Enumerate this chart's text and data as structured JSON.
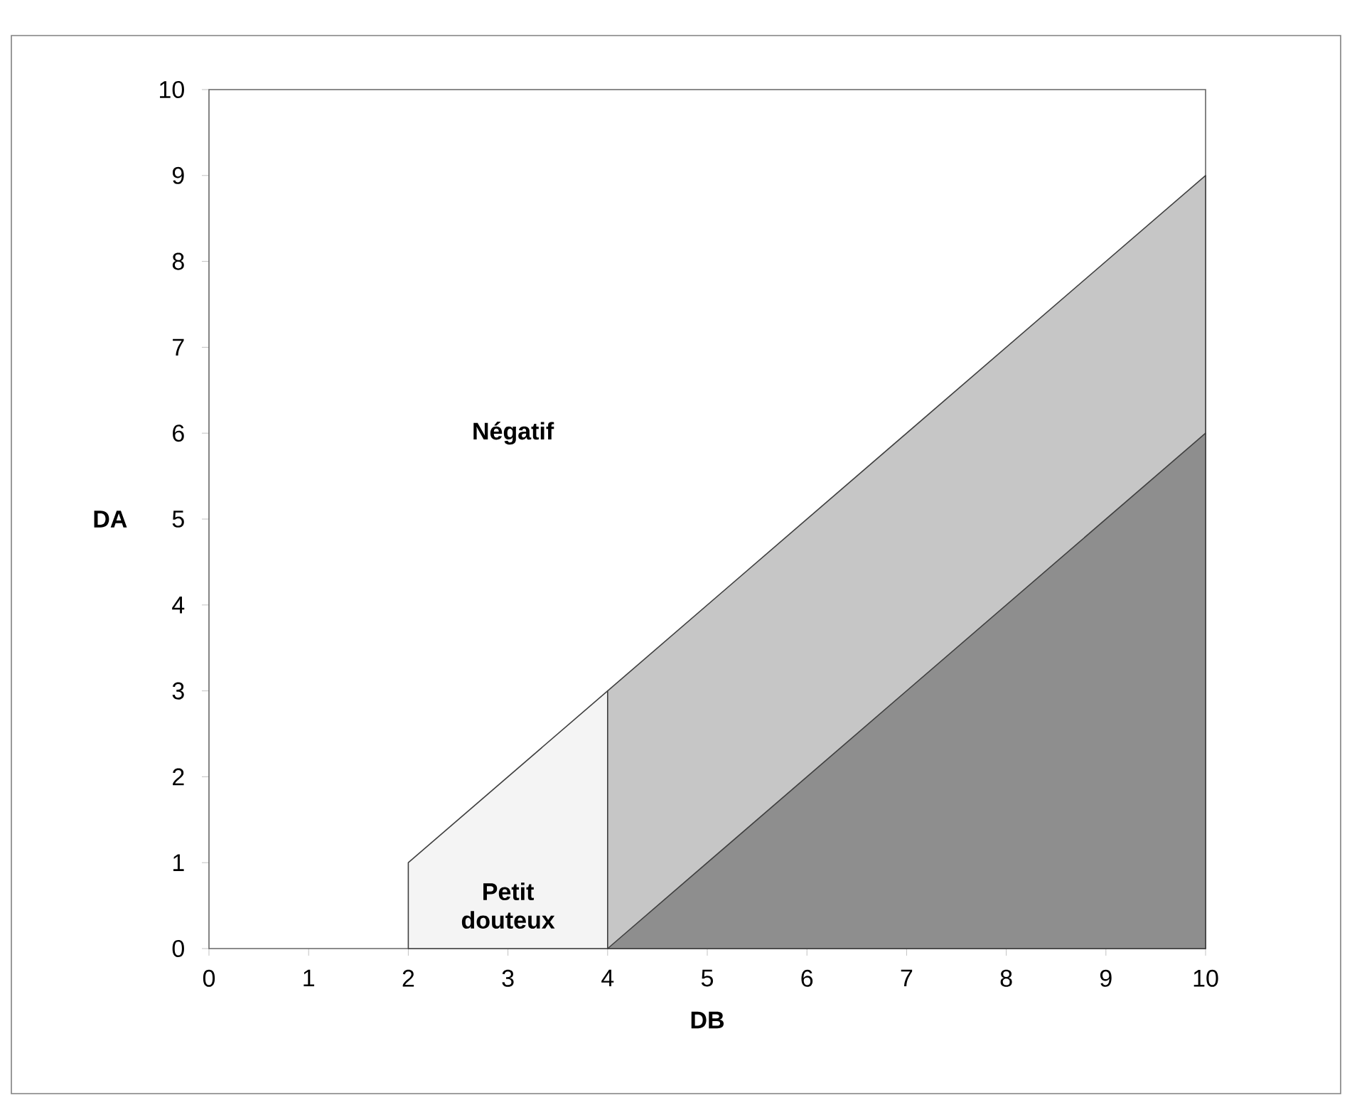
{
  "chart_data": {
    "type": "area",
    "xlabel": "DB",
    "ylabel": "DA",
    "xlim": [
      0,
      10
    ],
    "ylim": [
      0,
      10
    ],
    "xticks": [
      0,
      1,
      2,
      3,
      4,
      5,
      6,
      7,
      8,
      9,
      10
    ],
    "yticks": [
      0,
      1,
      2,
      3,
      4,
      5,
      6,
      7,
      8,
      9,
      10
    ],
    "grid": false,
    "legend": false,
    "series": [
      {
        "name": "Petit douteux",
        "color": "#f4f4f4",
        "x": [
          2,
          4
        ],
        "values": [
          1,
          3
        ]
      },
      {
        "color": "#c6c6c6",
        "x": [
          4,
          10
        ],
        "values": [
          3,
          9
        ]
      },
      {
        "color": "#8e8e8e",
        "x": [
          4,
          10
        ],
        "values": [
          0,
          6
        ]
      }
    ],
    "annotations": [
      "Négatif"
    ]
  }
}
